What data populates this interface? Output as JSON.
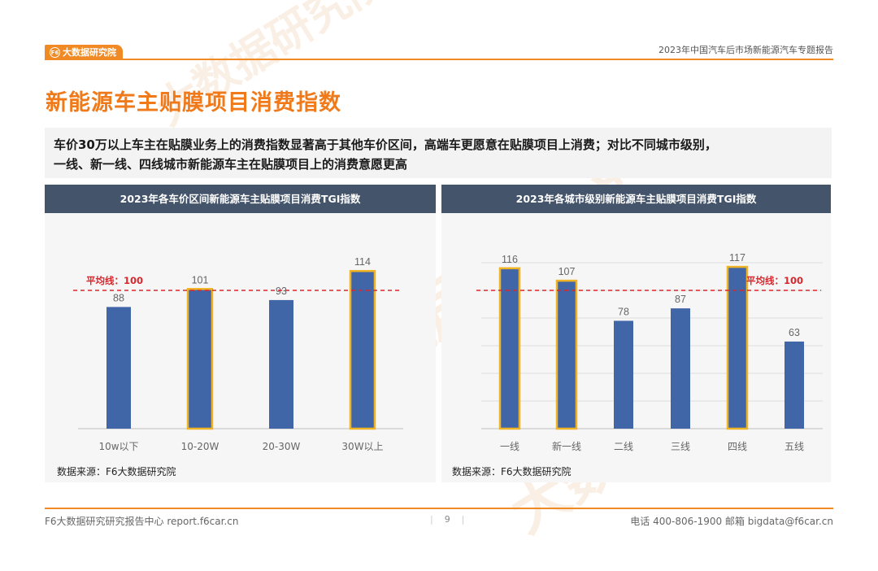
{
  "header": {
    "logo_text": "大数据研究院",
    "logo_mark": "F6",
    "report_title": "2023年中国汽车后市场新能源汽车专题报告"
  },
  "watermark": {
    "text": "大数据研究院",
    "mark": "F6"
  },
  "page_title": "新能源车主贴膜项目消费指数",
  "summary": {
    "line1": "车价30万以上车主在贴膜业务上的消费指数显著高于其他车价区间，高端车更愿意在贴膜项目上消费；对比不同城市级别，",
    "line2": "一线、新一线、四线城市新能源车主在贴膜项目上的消费意愿更高"
  },
  "colors": {
    "accent": "#f08a24",
    "bar": "#4166a8",
    "bar_highlight_border": "#f0b323",
    "avg_line": "#d9262c",
    "panel_header": "#44546a"
  },
  "chart_data": [
    {
      "type": "bar",
      "title": "2023年各车价区间新能源车主贴膜项目消费TGI指数",
      "categories": [
        "10w以下",
        "10-20W",
        "20-30W",
        "30W以上"
      ],
      "values": [
        88,
        101,
        93,
        114
      ],
      "highlighted": [
        false,
        true,
        false,
        true
      ],
      "reference_line": {
        "value": 100,
        "label": "平均线：100",
        "style": "dashed",
        "color": "#d9262c"
      },
      "grid": false,
      "ylim": [
        0,
        120
      ],
      "source": "数据来源：F6大数据研究院"
    },
    {
      "type": "bar",
      "title": "2023年各城市级别新能源车主贴膜项目消费TGI指数",
      "categories": [
        "一线",
        "新一线",
        "二线",
        "三线",
        "四线",
        "五线"
      ],
      "values": [
        116,
        107,
        78,
        87,
        117,
        63
      ],
      "highlighted": [
        true,
        true,
        false,
        false,
        true,
        false
      ],
      "reference_line": {
        "value": 100,
        "label": "平均线：100",
        "style": "dashed",
        "color": "#d9262c"
      },
      "grid": true,
      "ylim": [
        0,
        120
      ],
      "source": "数据来源：F6大数据研究院"
    }
  ],
  "footer": {
    "left": "F6大数据研究研究报告中心 report.f6car.cn",
    "page_number": "9",
    "right": "电话 400-806-1900  邮箱 bigdata@f6car.cn"
  }
}
